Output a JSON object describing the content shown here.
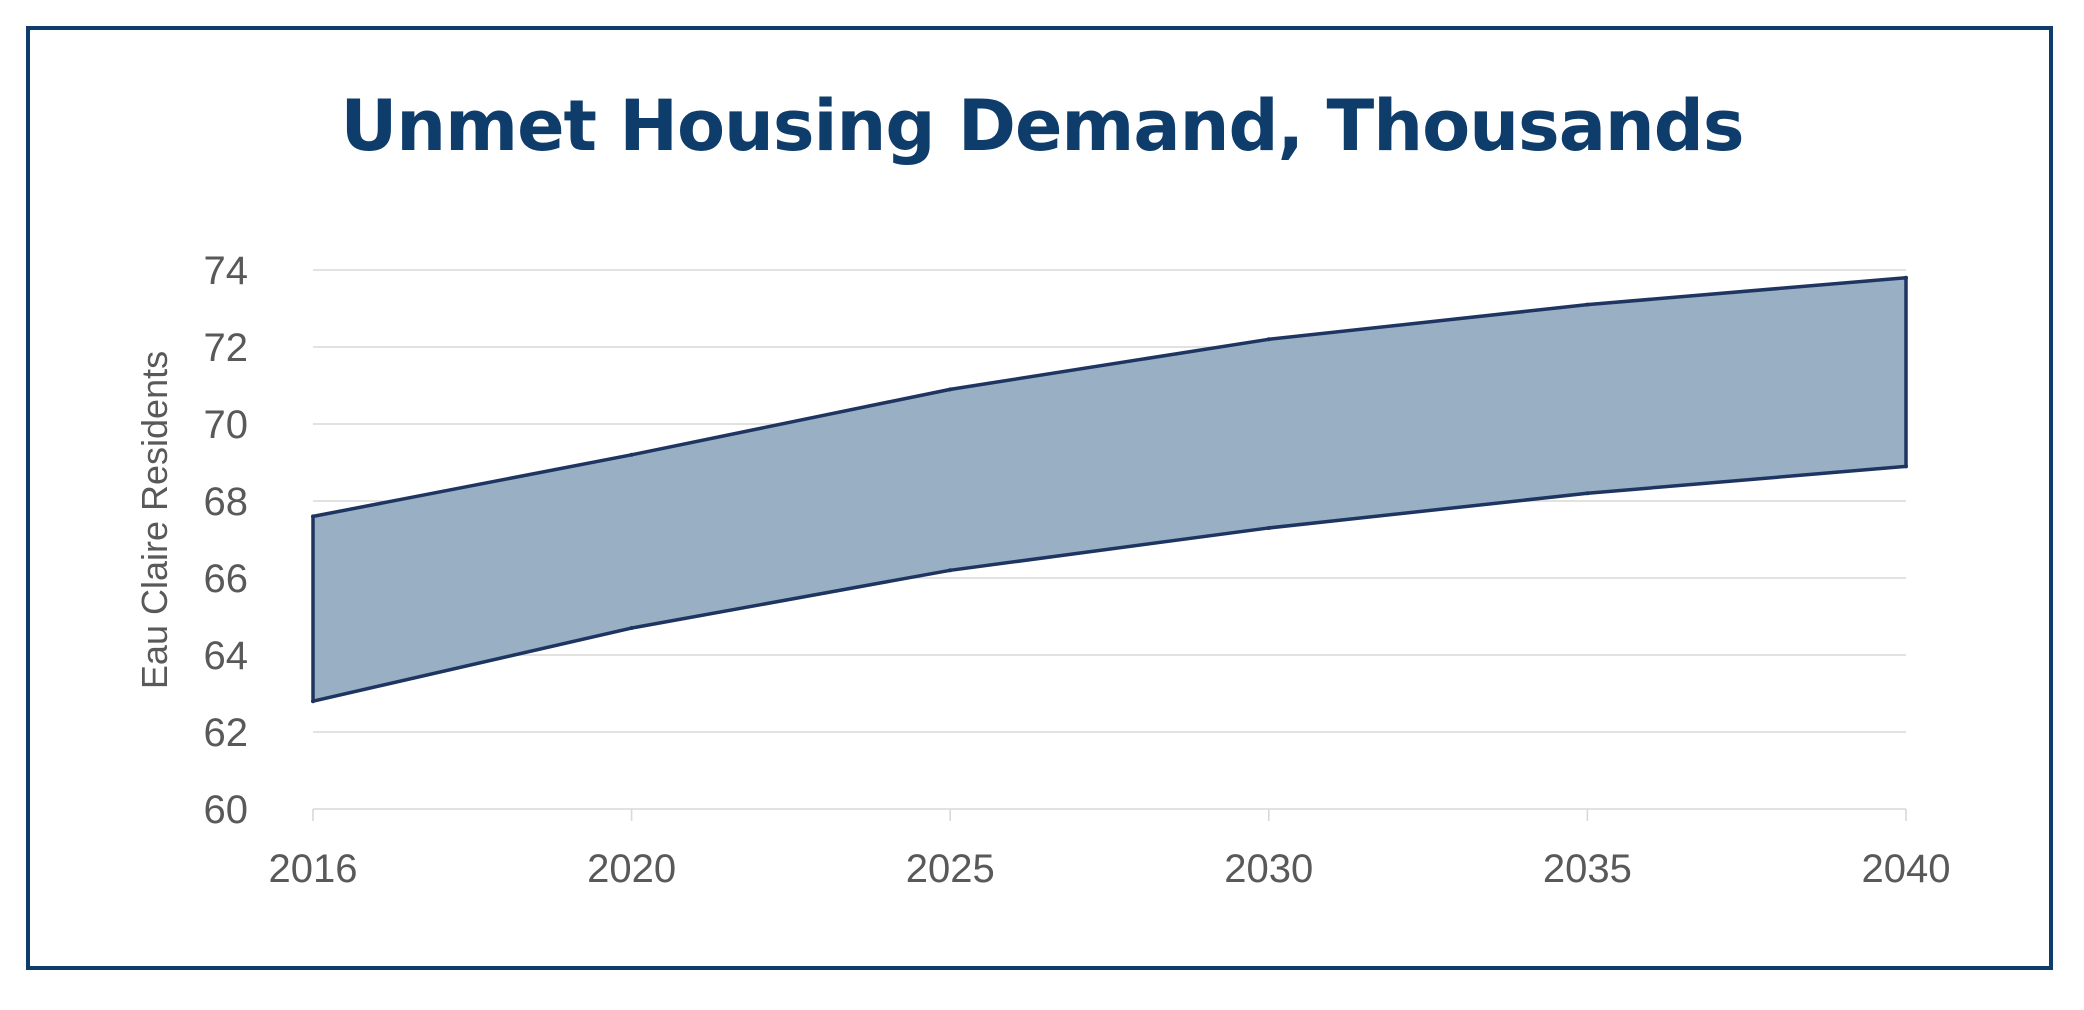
{
  "chart_data": {
    "type": "area",
    "title": "Unmet Housing Demand, Thousands",
    "xlabel": "",
    "ylabel": "Eau Claire Residents",
    "categories": [
      "2016",
      "2020",
      "2025",
      "2030",
      "2035",
      "2040"
    ],
    "series": [
      {
        "values": [
          67.6,
          69.2,
          70.9,
          72.2,
          73.1,
          73.8
        ]
      },
      {
        "values": [
          62.8,
          64.7,
          66.2,
          67.3,
          68.2,
          68.9
        ]
      }
    ],
    "ylim": [
      60,
      74
    ],
    "yticks": [
      "60",
      "62",
      "64",
      "66",
      "68",
      "70",
      "72",
      "74"
    ],
    "grid": true,
    "legend": "none",
    "colors": {
      "fill": "#98afc4",
      "line": "#1e3461",
      "grid": "#d9d9d9",
      "text": "#595959",
      "title": "#0f3d6b",
      "frame": "#0f3d6b"
    }
  }
}
